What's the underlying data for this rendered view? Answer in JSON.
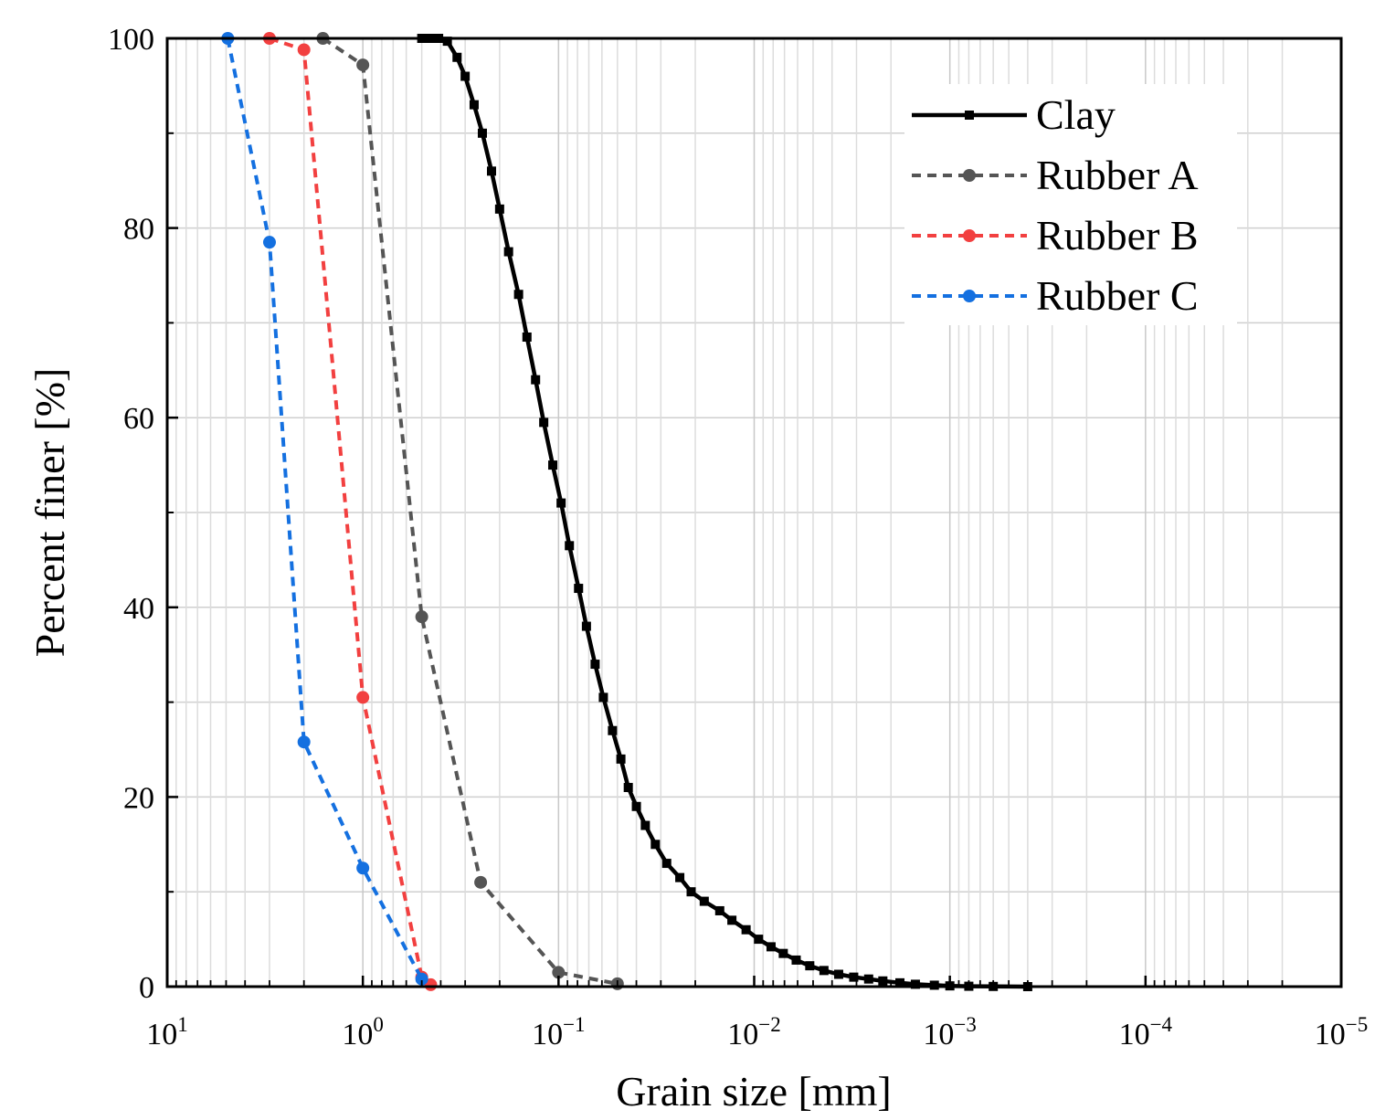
{
  "chart_data": {
    "type": "line",
    "title": "",
    "xlabel": "Grain size [mm]",
    "ylabel": "Percent finer [%]",
    "x_scale": "log",
    "x_reversed": true,
    "xlim": [
      10,
      1e-05
    ],
    "ylim": [
      0,
      100
    ],
    "grid": true,
    "legend_position": "top-right",
    "x_ticks": [
      {
        "value": 10,
        "base": "10",
        "exp": "1"
      },
      {
        "value": 1,
        "base": "10",
        "exp": "0"
      },
      {
        "value": 0.1,
        "base": "10",
        "exp": "−1"
      },
      {
        "value": 0.01,
        "base": "10",
        "exp": "−2"
      },
      {
        "value": 0.001,
        "base": "10",
        "exp": "−3"
      },
      {
        "value": 0.0001,
        "base": "10",
        "exp": "−4"
      },
      {
        "value": 1e-05,
        "base": "10",
        "exp": "−5"
      }
    ],
    "y_ticks": [
      {
        "value": 0,
        "label": "0"
      },
      {
        "value": 20,
        "label": "20"
      },
      {
        "value": 40,
        "label": "40"
      },
      {
        "value": 60,
        "label": "60"
      },
      {
        "value": 80,
        "label": "80"
      },
      {
        "value": 100,
        "label": "100"
      }
    ],
    "series": [
      {
        "name": "Clay",
        "color": "#000000",
        "line_style": "solid",
        "marker": "square",
        "points": [
          [
            0.5,
            100
          ],
          [
            0.45,
            100
          ],
          [
            0.41,
            100
          ],
          [
            0.37,
            99.7
          ],
          [
            0.33,
            98
          ],
          [
            0.3,
            96
          ],
          [
            0.27,
            93
          ],
          [
            0.245,
            90
          ],
          [
            0.22,
            86
          ],
          [
            0.2,
            82
          ],
          [
            0.18,
            77.5
          ],
          [
            0.16,
            73
          ],
          [
            0.145,
            68.5
          ],
          [
            0.131,
            64
          ],
          [
            0.119,
            59.5
          ],
          [
            0.107,
            55
          ],
          [
            0.097,
            51
          ],
          [
            0.088,
            46.5
          ],
          [
            0.079,
            42
          ],
          [
            0.072,
            38
          ],
          [
            0.065,
            34
          ],
          [
            0.059,
            30.5
          ],
          [
            0.053,
            27
          ],
          [
            0.048,
            24
          ],
          [
            0.044,
            21
          ],
          [
            0.04,
            19
          ],
          [
            0.036,
            17
          ],
          [
            0.032,
            15
          ],
          [
            0.028,
            13
          ],
          [
            0.024,
            11.5
          ],
          [
            0.021,
            10
          ],
          [
            0.018,
            9
          ],
          [
            0.015,
            8
          ],
          [
            0.013,
            7
          ],
          [
            0.011,
            6
          ],
          [
            0.0095,
            5
          ],
          [
            0.0082,
            4.2
          ],
          [
            0.0071,
            3.5
          ],
          [
            0.0061,
            2.8
          ],
          [
            0.0052,
            2.2
          ],
          [
            0.0044,
            1.7
          ],
          [
            0.0037,
            1.3
          ],
          [
            0.0031,
            1.0
          ],
          [
            0.0026,
            0.8
          ],
          [
            0.0022,
            0.6
          ],
          [
            0.0018,
            0.4
          ],
          [
            0.0015,
            0.25
          ],
          [
            0.0012,
            0.15
          ],
          [
            0.001,
            0.08
          ],
          [
            0.0008,
            0.04
          ],
          [
            0.0006,
            0.02
          ],
          [
            0.0004,
            0
          ]
        ]
      },
      {
        "name": "Rubber A",
        "color": "#555555",
        "line_style": "dashed",
        "marker": "circle",
        "points": [
          [
            1.6,
            100
          ],
          [
            1.0,
            97.2
          ],
          [
            0.5,
            39
          ],
          [
            0.25,
            11
          ],
          [
            0.1,
            1.5
          ],
          [
            0.05,
            0.3
          ]
        ]
      },
      {
        "name": "Rubber B",
        "color": "#f24040",
        "line_style": "dashed",
        "marker": "circle",
        "points": [
          [
            3.0,
            100
          ],
          [
            2.0,
            98.8
          ],
          [
            1.0,
            30.5
          ],
          [
            0.5,
            1
          ],
          [
            0.45,
            0.2
          ]
        ]
      },
      {
        "name": "Rubber C",
        "color": "#1470e0",
        "line_style": "dashed",
        "marker": "circle",
        "points": [
          [
            4.9,
            100
          ],
          [
            3.0,
            78.5
          ],
          [
            2.0,
            25.8
          ],
          [
            1.0,
            12.5
          ],
          [
            0.5,
            0.8
          ]
        ]
      }
    ]
  }
}
